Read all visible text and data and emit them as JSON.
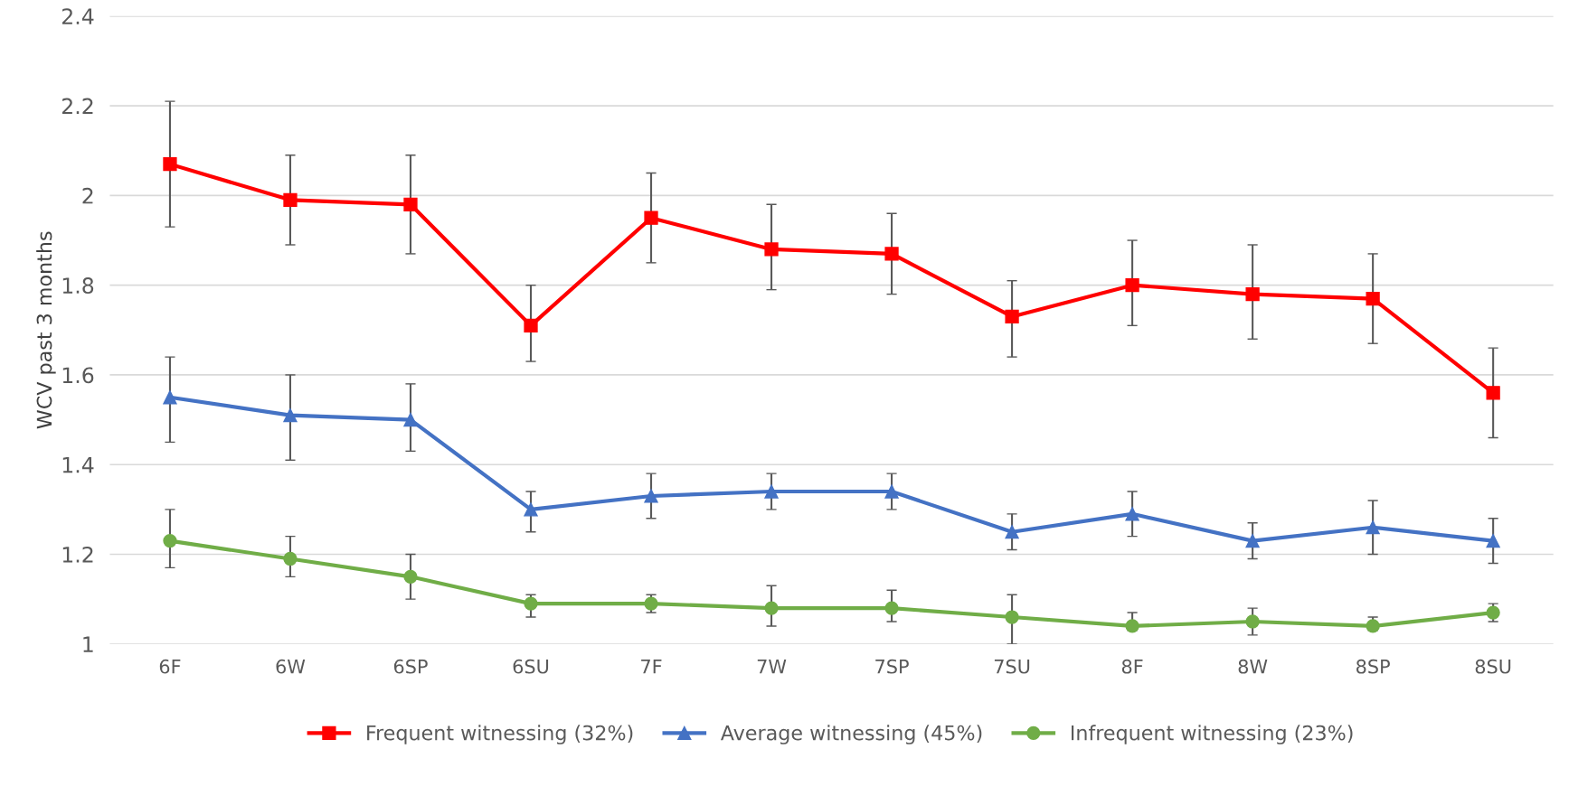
{
  "chart_data": {
    "type": "line",
    "ylabel": "WCV past 3 months",
    "categories": [
      "6F",
      "6W",
      "6SP",
      "6SU",
      "7F",
      "7W",
      "7SP",
      "7SU",
      "8F",
      "8W",
      "8SP",
      "8SU"
    ],
    "series": [
      {
        "name": "Frequent witnessing (32%)",
        "color": "#ff0000",
        "marker": "square",
        "values": [
          2.07,
          1.99,
          1.98,
          1.71,
          1.95,
          1.88,
          1.87,
          1.73,
          1.8,
          1.78,
          1.77,
          1.56
        ],
        "errors": [
          [
            1.93,
            2.21
          ],
          [
            1.89,
            2.09
          ],
          [
            1.87,
            2.09
          ],
          [
            1.63,
            1.8
          ],
          [
            1.85,
            2.05
          ],
          [
            1.79,
            1.98
          ],
          [
            1.78,
            1.96
          ],
          [
            1.64,
            1.81
          ],
          [
            1.71,
            1.9
          ],
          [
            1.68,
            1.89
          ],
          [
            1.67,
            1.87
          ],
          [
            1.46,
            1.66
          ]
        ]
      },
      {
        "name": "Average witnessing (45%)",
        "color": "#4472c4",
        "marker": "triangle",
        "values": [
          1.55,
          1.51,
          1.5,
          1.3,
          1.33,
          1.34,
          1.34,
          1.25,
          1.29,
          1.23,
          1.26,
          1.23
        ],
        "errors": [
          [
            1.45,
            1.64
          ],
          [
            1.41,
            1.6
          ],
          [
            1.43,
            1.58
          ],
          [
            1.25,
            1.34
          ],
          [
            1.28,
            1.38
          ],
          [
            1.3,
            1.38
          ],
          [
            1.3,
            1.38
          ],
          [
            1.21,
            1.29
          ],
          [
            1.24,
            1.34
          ],
          [
            1.19,
            1.27
          ],
          [
            1.2,
            1.32
          ],
          [
            1.18,
            1.28
          ]
        ]
      },
      {
        "name": "Infrequent witnessing (23%)",
        "color": "#70ad47",
        "marker": "circle",
        "values": [
          1.23,
          1.19,
          1.15,
          1.09,
          1.09,
          1.08,
          1.08,
          1.06,
          1.04,
          1.05,
          1.04,
          1.07
        ],
        "errors": [
          [
            1.17,
            1.3
          ],
          [
            1.15,
            1.24
          ],
          [
            1.1,
            1.2
          ],
          [
            1.06,
            1.11
          ],
          [
            1.07,
            1.11
          ],
          [
            1.04,
            1.13
          ],
          [
            1.05,
            1.12
          ],
          [
            1.0,
            1.11
          ],
          [
            1.03,
            1.07
          ],
          [
            1.02,
            1.08
          ],
          [
            1.03,
            1.06
          ],
          [
            1.05,
            1.09
          ]
        ]
      }
    ],
    "ylim": [
      1,
      2.4
    ],
    "yticks": [
      1,
      1.2,
      1.4,
      1.6,
      1.8,
      2,
      2.2,
      2.4
    ],
    "grid": "y",
    "legend": "bottom",
    "line_style": "solid"
  }
}
